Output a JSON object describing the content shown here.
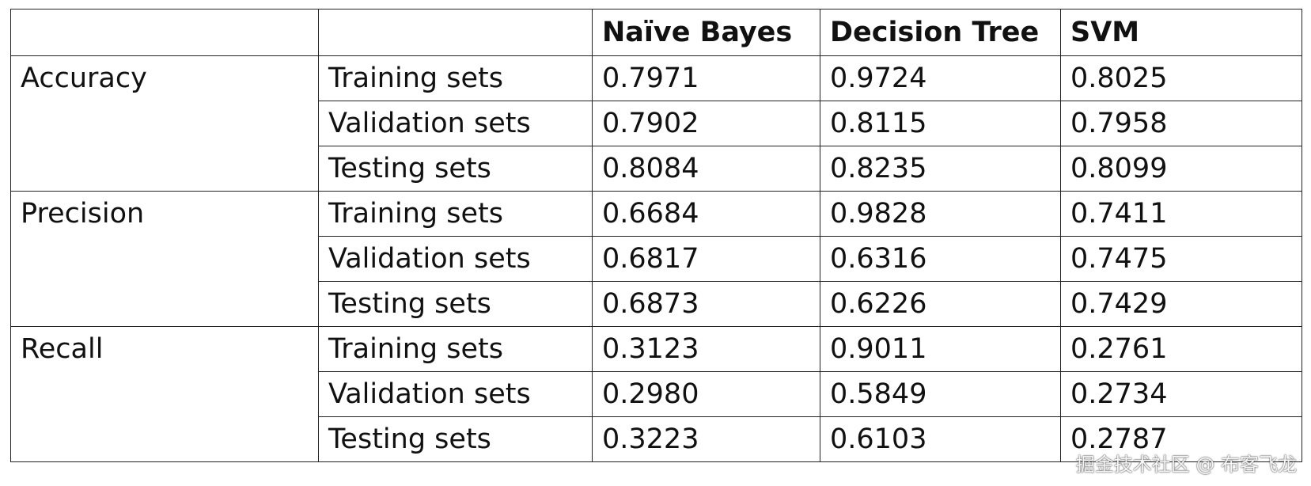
{
  "table": {
    "columns": [
      "Naïve Bayes",
      "Decision Tree",
      "SVM"
    ],
    "groups": [
      {
        "metric": "Accuracy",
        "rows": [
          {
            "label": "Training sets",
            "values": [
              "0.7971",
              "0.9724",
              "0.8025"
            ]
          },
          {
            "label": "Validation sets",
            "values": [
              "0.7902",
              "0.8115",
              "0.7958"
            ]
          },
          {
            "label": "Testing sets",
            "values": [
              "0.8084",
              "0.8235",
              "0.8099"
            ]
          }
        ]
      },
      {
        "metric": "Precision",
        "rows": [
          {
            "label": "Training sets",
            "values": [
              "0.6684",
              "0.9828",
              "0.7411"
            ]
          },
          {
            "label": "Validation sets",
            "values": [
              "0.6817",
              "0.6316",
              "0.7475"
            ]
          },
          {
            "label": "Testing sets",
            "values": [
              "0.6873",
              "0.6226",
              "0.7429"
            ]
          }
        ]
      },
      {
        "metric": "Recall",
        "rows": [
          {
            "label": "Training sets",
            "values": [
              "0.3123",
              "0.9011",
              "0.2761"
            ]
          },
          {
            "label": "Validation sets",
            "values": [
              "0.2980",
              "0.5849",
              "0.2734"
            ]
          },
          {
            "label": "Testing sets",
            "values": [
              "0.3223",
              "0.6103",
              "0.2787"
            ]
          }
        ]
      }
    ]
  },
  "watermark": "掘金技术社区 @ 布客飞龙"
}
